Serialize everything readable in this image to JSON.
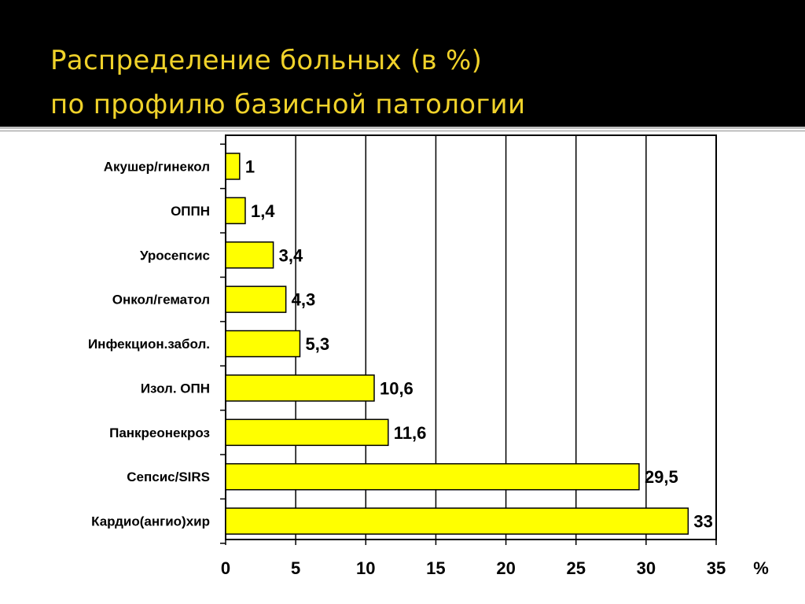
{
  "slide": {
    "title_line1": "Распределение больных (в %)",
    "title_line2": "по профилю базисной патологии"
  },
  "colors": {
    "background_header": "#000000",
    "title": "#f0d22a",
    "bar_fill": "#ffff00",
    "bar_stroke": "#000000"
  },
  "chart_data": {
    "type": "bar",
    "orientation": "horizontal",
    "categories": [
      "Акушер/гинекол",
      "ОППН",
      "Уросепсис",
      "Онкол/гематол",
      "Инфекцион.забол.",
      "Изол. ОПН",
      "Панкреонекроз",
      "Сепсис/SIRS",
      "Кардио(ангио)хир"
    ],
    "values": [
      1,
      1.4,
      3.4,
      4.3,
      5.3,
      10.6,
      11.6,
      29.5,
      33
    ],
    "value_labels": [
      "1",
      "1,4",
      "3,4",
      "4,3",
      "5,3",
      "10,6",
      "11,6",
      "29,5",
      "33"
    ],
    "xticks": [
      0,
      5,
      10,
      15,
      20,
      25,
      30,
      35
    ],
    "xlim": [
      0,
      35
    ],
    "xunit": "%",
    "grid": "vertical",
    "legend": "none"
  }
}
